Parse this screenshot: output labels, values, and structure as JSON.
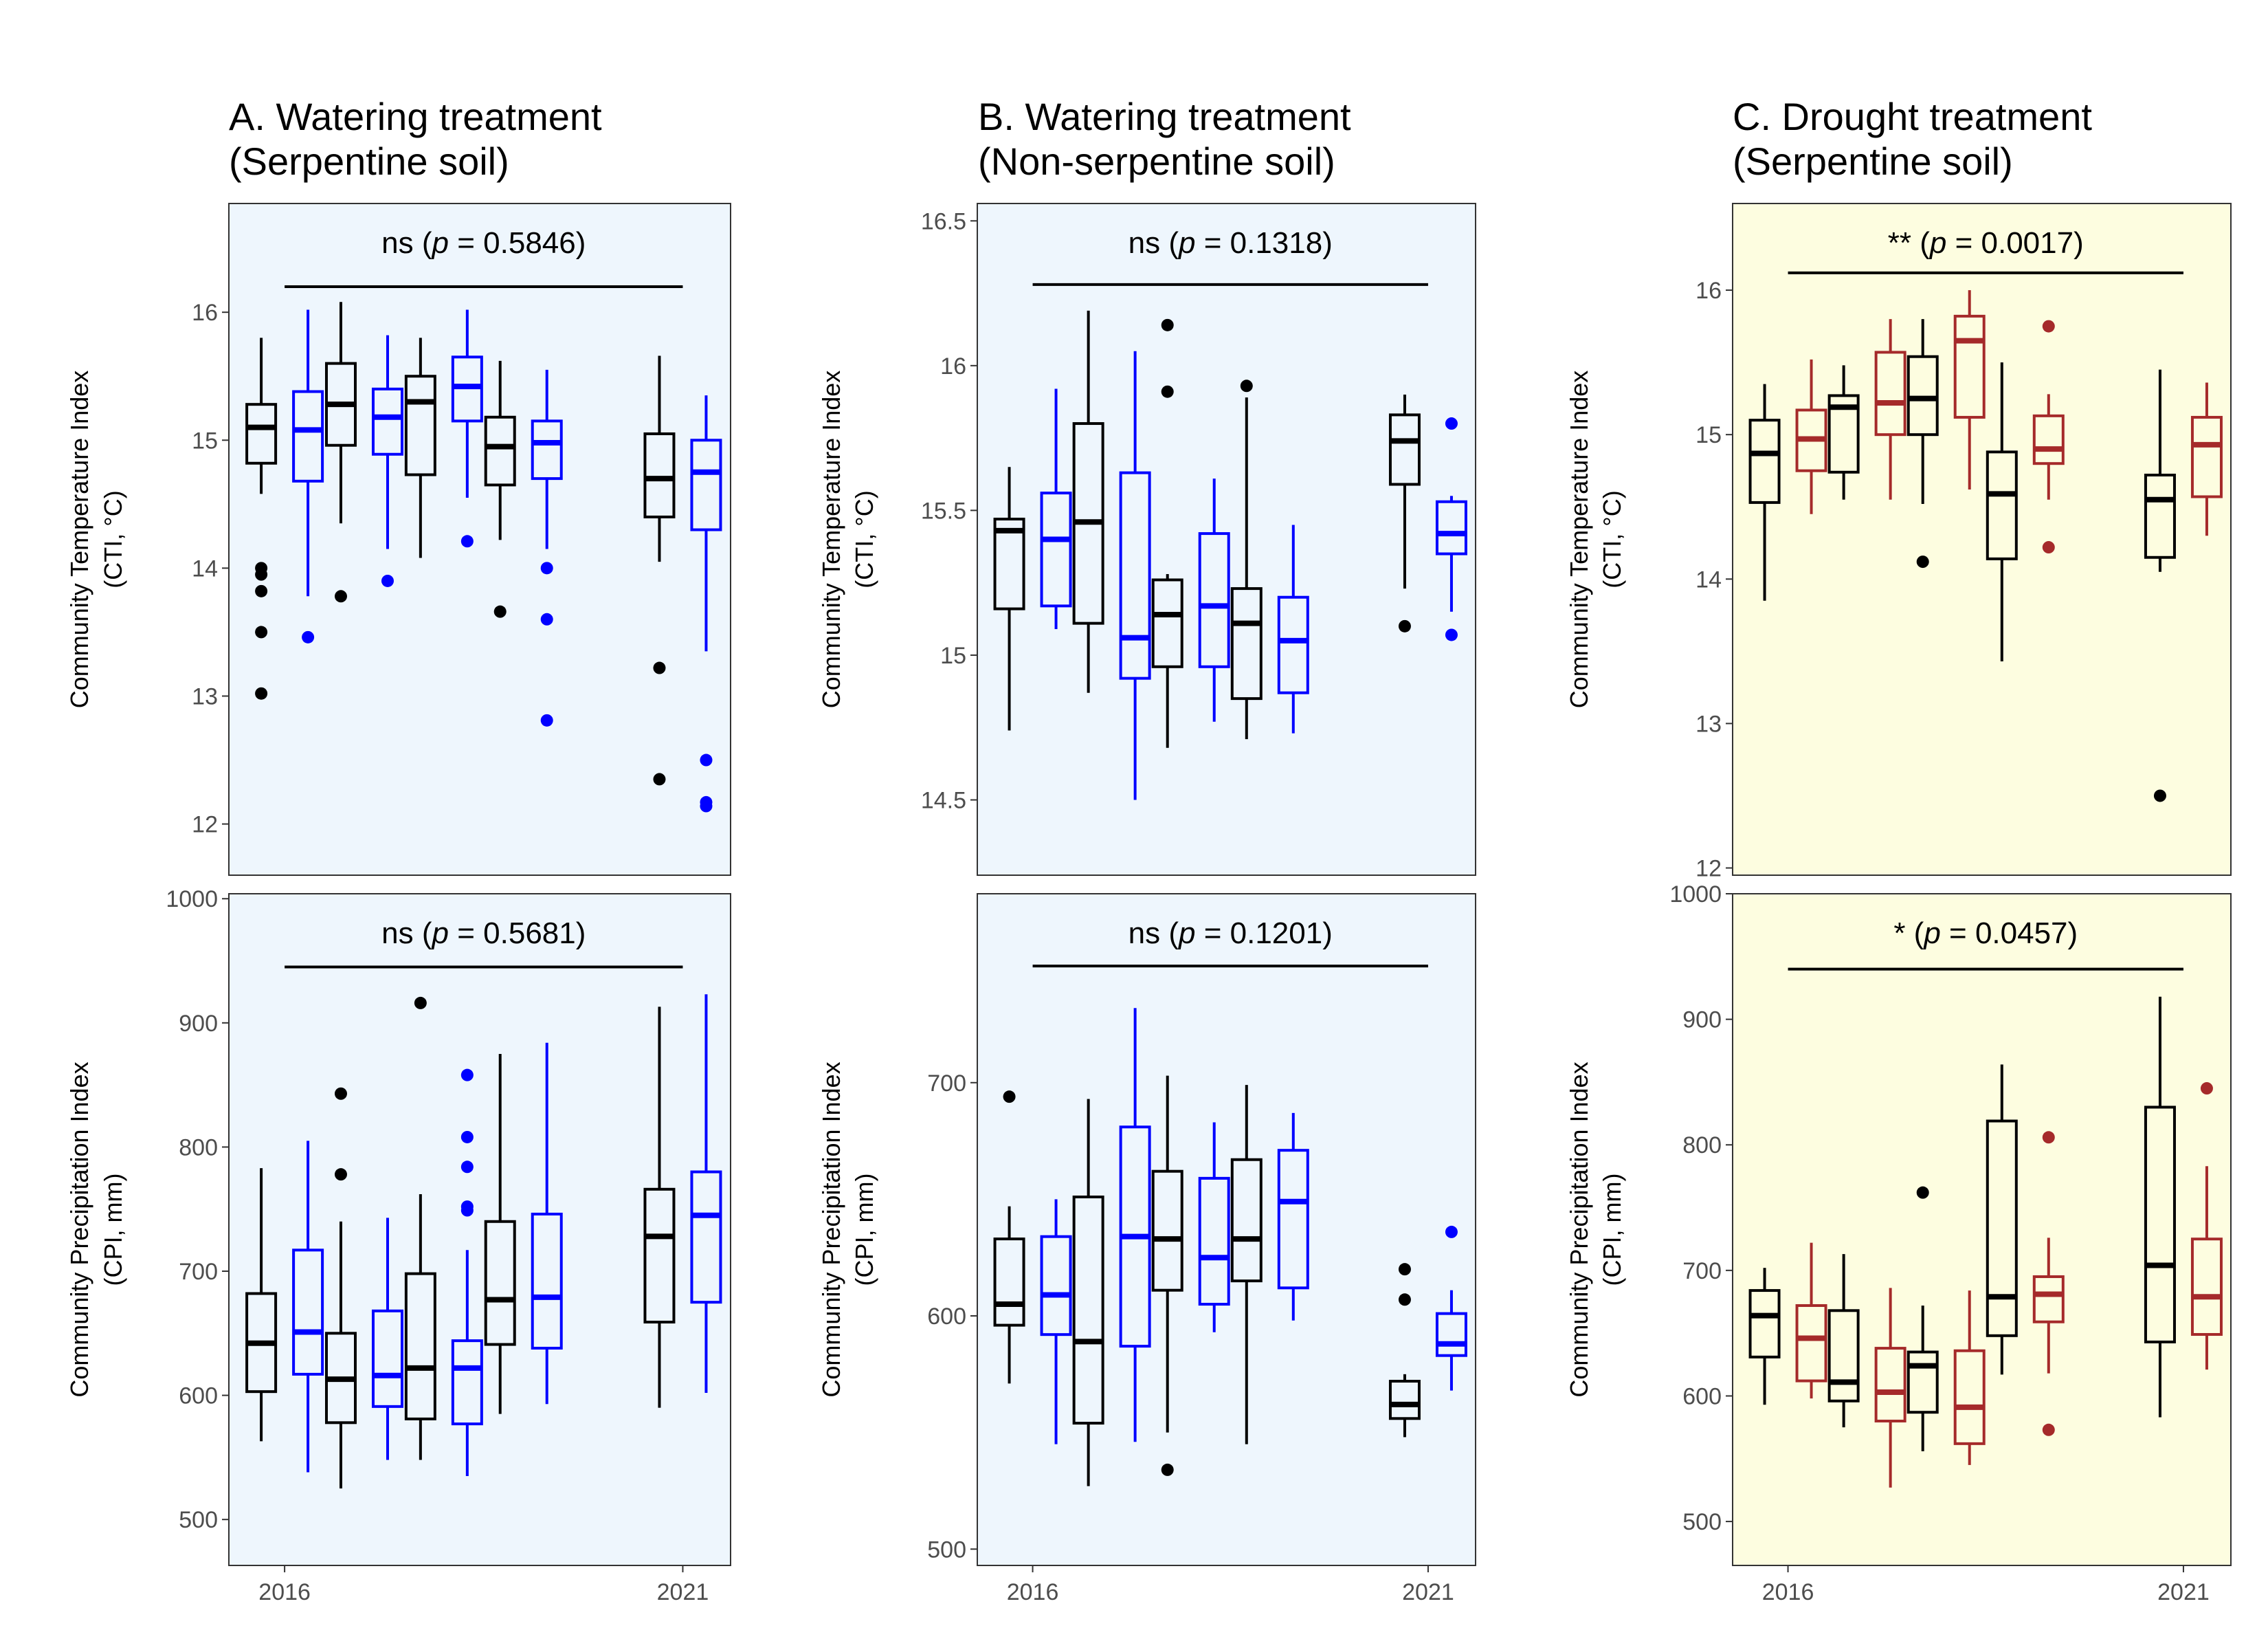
{
  "chart_data": [
    {
      "type": "box",
      "panel": "A",
      "title": "A. Watering treatment",
      "subtitle": "(Serpentine soil)",
      "ylabel": "Community Temperature Index",
      "ylabel2": "(CTI, °C)",
      "ylim": [
        11.6,
        16.85
      ],
      "yticks": [
        12,
        13,
        14,
        15,
        16
      ],
      "xticks": [
        "2016",
        "2021"
      ],
      "bg": "#eef6fd",
      "significance": {
        "stars": "ns",
        "p_label": "p = 0.5846",
        "x_from": 2016,
        "x_to": 2021,
        "y": 16.2
      },
      "series": [
        {
          "color": "#000000",
          "boxes": [
            {
              "x": 2016,
              "q1": 14.82,
              "median": 15.1,
              "q3": 15.28,
              "lo": 14.58,
              "hi": 15.8,
              "outliers": [
                14.0,
                13.95,
                13.82,
                13.5,
                13.02
              ]
            },
            {
              "x": 2017,
              "q1": 14.96,
              "median": 15.28,
              "q3": 15.6,
              "lo": 14.35,
              "hi": 16.08,
              "outliers": [
                13.78
              ]
            },
            {
              "x": 2018,
              "q1": 14.73,
              "median": 15.3,
              "q3": 15.5,
              "lo": 14.08,
              "hi": 15.8,
              "outliers": []
            },
            {
              "x": 2019,
              "q1": 14.65,
              "median": 14.95,
              "q3": 15.18,
              "lo": 14.22,
              "hi": 15.62,
              "outliers": [
                13.66
              ]
            },
            {
              "x": 2021,
              "q1": 14.4,
              "median": 14.7,
              "q3": 15.05,
              "lo": 14.05,
              "hi": 15.66,
              "outliers": [
                13.22,
                12.35
              ]
            }
          ]
        },
        {
          "color": "#0000ff",
          "boxes": [
            {
              "x": 2016,
              "q1": 14.68,
              "median": 15.08,
              "q3": 15.38,
              "lo": 13.78,
              "hi": 16.02,
              "outliers": [
                13.46
              ]
            },
            {
              "x": 2017,
              "q1": 14.89,
              "median": 15.18,
              "q3": 15.4,
              "lo": 14.15,
              "hi": 15.82,
              "outliers": [
                13.9
              ]
            },
            {
              "x": 2018,
              "q1": 15.15,
              "median": 15.42,
              "q3": 15.65,
              "lo": 14.55,
              "hi": 16.02,
              "outliers": [
                14.21
              ]
            },
            {
              "x": 2019,
              "q1": 14.7,
              "median": 14.98,
              "q3": 15.15,
              "lo": 14.15,
              "hi": 15.55,
              "outliers": [
                14.0,
                13.6,
                12.81
              ]
            },
            {
              "x": 2021,
              "q1": 14.3,
              "median": 14.75,
              "q3": 15.0,
              "lo": 13.35,
              "hi": 15.35,
              "outliers": [
                12.5,
                12.17,
                12.14
              ]
            }
          ]
        }
      ]
    },
    {
      "type": "box",
      "panel": "B",
      "title": "B. Watering treatment",
      "subtitle": "(Non-serpentine soil)",
      "ylabel": "Community Temperature Index",
      "ylabel2": "(CTI, °C)",
      "ylim": [
        14.24,
        16.56
      ],
      "yticks": [
        14.5,
        15.0,
        15.5,
        16.0,
        16.5
      ],
      "xticks": [
        "2016",
        "2021"
      ],
      "bg": "#eef6fd",
      "significance": {
        "stars": "ns",
        "p_label": "p = 0.1318",
        "x_from": 2016,
        "x_to": 2021,
        "y": 16.28
      },
      "series": [
        {
          "color": "#000000",
          "boxes": [
            {
              "x": 2016,
              "q1": 15.16,
              "median": 15.43,
              "q3": 15.47,
              "lo": 14.74,
              "hi": 15.65,
              "outliers": []
            },
            {
              "x": 2017,
              "q1": 15.11,
              "median": 15.46,
              "q3": 15.8,
              "lo": 14.87,
              "hi": 16.19,
              "outliers": []
            },
            {
              "x": 2018,
              "q1": 14.96,
              "median": 15.14,
              "q3": 15.26,
              "lo": 14.68,
              "hi": 15.28,
              "outliers": [
                16.14,
                15.91
              ]
            },
            {
              "x": 2019,
              "q1": 14.85,
              "median": 15.11,
              "q3": 15.23,
              "lo": 14.71,
              "hi": 15.89,
              "outliers": [
                15.93
              ]
            },
            {
              "x": 2021,
              "q1": 15.59,
              "median": 15.74,
              "q3": 15.83,
              "lo": 15.23,
              "hi": 15.9,
              "outliers": [
                15.1
              ]
            }
          ]
        },
        {
          "color": "#0000ff",
          "boxes": [
            {
              "x": 2016,
              "q1": 15.17,
              "median": 15.4,
              "q3": 15.56,
              "lo": 15.09,
              "hi": 15.92,
              "outliers": []
            },
            {
              "x": 2017,
              "q1": 14.92,
              "median": 15.06,
              "q3": 15.63,
              "lo": 14.5,
              "hi": 16.05,
              "outliers": []
            },
            {
              "x": 2018,
              "q1": 14.96,
              "median": 15.17,
              "q3": 15.42,
              "lo": 14.77,
              "hi": 15.61,
              "outliers": []
            },
            {
              "x": 2019,
              "q1": 14.87,
              "median": 15.05,
              "q3": 15.2,
              "lo": 14.73,
              "hi": 15.45,
              "outliers": []
            },
            {
              "x": 2021,
              "q1": 15.35,
              "median": 15.42,
              "q3": 15.53,
              "lo": 15.15,
              "hi": 15.55,
              "outliers": [
                15.8,
                15.07
              ]
            }
          ]
        }
      ]
    },
    {
      "type": "box",
      "panel": "C",
      "title": "C. Drought treatment",
      "subtitle": "(Serpentine soil)",
      "ylabel": "Community Temperature Index",
      "ylabel2": "(CTI, °C)",
      "ylim": [
        11.95,
        16.6
      ],
      "yticks": [
        12,
        13,
        14,
        15,
        16
      ],
      "xticks": [
        "2016",
        "2021"
      ],
      "bg": "#fdfde0",
      "significance": {
        "stars": "**",
        "p_label": "p = 0.0017",
        "x_from": 2016,
        "x_to": 2021,
        "y": 16.12
      },
      "series": [
        {
          "color": "#000000",
          "boxes": [
            {
              "x": 2016,
              "q1": 14.53,
              "median": 14.87,
              "q3": 15.1,
              "lo": 13.85,
              "hi": 15.35,
              "outliers": []
            },
            {
              "x": 2017,
              "q1": 14.74,
              "median": 15.19,
              "q3": 15.27,
              "lo": 14.55,
              "hi": 15.48,
              "outliers": []
            },
            {
              "x": 2018,
              "q1": 15.0,
              "median": 15.25,
              "q3": 15.54,
              "lo": 14.52,
              "hi": 15.8,
              "outliers": [
                14.12
              ]
            },
            {
              "x": 2019,
              "q1": 14.14,
              "median": 14.59,
              "q3": 14.88,
              "lo": 13.43,
              "hi": 15.5,
              "outliers": []
            },
            {
              "x": 2021,
              "q1": 14.15,
              "median": 14.55,
              "q3": 14.72,
              "lo": 14.05,
              "hi": 15.45,
              "outliers": [
                12.5
              ]
            }
          ]
        },
        {
          "color": "#a52a2a",
          "boxes": [
            {
              "x": 2016,
              "q1": 14.75,
              "median": 14.97,
              "q3": 15.17,
              "lo": 14.45,
              "hi": 15.52,
              "outliers": []
            },
            {
              "x": 2017,
              "q1": 15.0,
              "median": 15.22,
              "q3": 15.57,
              "lo": 14.55,
              "hi": 15.8,
              "outliers": []
            },
            {
              "x": 2018,
              "q1": 15.12,
              "median": 15.65,
              "q3": 15.82,
              "lo": 14.62,
              "hi": 16.0,
              "outliers": []
            },
            {
              "x": 2019,
              "q1": 14.8,
              "median": 14.9,
              "q3": 15.13,
              "lo": 14.55,
              "hi": 15.28,
              "outliers": [
                15.75,
                14.22
              ]
            },
            {
              "x": 2021,
              "q1": 14.57,
              "median": 14.93,
              "q3": 15.12,
              "lo": 14.3,
              "hi": 15.36,
              "outliers": []
            }
          ]
        }
      ]
    },
    {
      "type": "box",
      "panel": "A-bottom",
      "title": "",
      "subtitle": "",
      "ylabel": "Community Precipitation Index",
      "ylabel2": "(CPI, mm)",
      "ylim": [
        463,
        1004
      ],
      "yticks": [
        500,
        600,
        700,
        800,
        900,
        1000
      ],
      "xticks": [
        "2016",
        "2021"
      ],
      "bg": "#eef6fd",
      "significance": {
        "stars": "ns",
        "p_label": "p = 0.5681",
        "x_from": 2016,
        "x_to": 2021,
        "y": 945
      },
      "series": [
        {
          "color": "#000000",
          "boxes": [
            {
              "x": 2016,
              "q1": 603,
              "median": 642,
              "q3": 682,
              "lo": 563,
              "hi": 783,
              "outliers": []
            },
            {
              "x": 2017,
              "q1": 578,
              "median": 613,
              "q3": 650,
              "lo": 525,
              "hi": 740,
              "outliers": [
                843,
                778
              ]
            },
            {
              "x": 2018,
              "q1": 581,
              "median": 622,
              "q3": 698,
              "lo": 548,
              "hi": 762,
              "outliers": [
                916
              ]
            },
            {
              "x": 2019,
              "q1": 641,
              "median": 677,
              "q3": 740,
              "lo": 585,
              "hi": 875,
              "outliers": []
            },
            {
              "x": 2021,
              "q1": 659,
              "median": 728,
              "q3": 766,
              "lo": 590,
              "hi": 913,
              "outliers": []
            }
          ]
        },
        {
          "color": "#0000ff",
          "boxes": [
            {
              "x": 2016,
              "q1": 617,
              "median": 651,
              "q3": 717,
              "lo": 538,
              "hi": 805,
              "outliers": []
            },
            {
              "x": 2017,
              "q1": 591,
              "median": 616,
              "q3": 668,
              "lo": 548,
              "hi": 743,
              "outliers": []
            },
            {
              "x": 2018,
              "q1": 577,
              "median": 622,
              "q3": 644,
              "lo": 535,
              "hi": 717,
              "outliers": [
                858,
                808,
                784,
                752,
                749
              ]
            },
            {
              "x": 2019,
              "q1": 638,
              "median": 679,
              "q3": 746,
              "lo": 593,
              "hi": 884,
              "outliers": []
            },
            {
              "x": 2021,
              "q1": 675,
              "median": 745,
              "q3": 780,
              "lo": 602,
              "hi": 923,
              "outliers": []
            }
          ]
        }
      ]
    },
    {
      "type": "box",
      "panel": "B-bottom",
      "title": "",
      "subtitle": "",
      "ylabel": "Community Precipitation Index",
      "ylabel2": "(CPI, mm)",
      "ylim": [
        493,
        781
      ],
      "yticks": [
        500,
        600,
        700
      ],
      "xticks": [
        "2016",
        "2021"
      ],
      "bg": "#eef6fd",
      "significance": {
        "stars": "ns",
        "p_label": "p = 0.1201",
        "x_from": 2016,
        "x_to": 2021,
        "y": 750
      },
      "series": [
        {
          "color": "#000000",
          "boxes": [
            {
              "x": 2016,
              "q1": 596,
              "median": 605,
              "q3": 633,
              "lo": 571,
              "hi": 647,
              "outliers": [
                694
              ]
            },
            {
              "x": 2017,
              "q1": 554,
              "median": 589,
              "q3": 651,
              "lo": 527,
              "hi": 693,
              "outliers": []
            },
            {
              "x": 2018,
              "q1": 611,
              "median": 633,
              "q3": 662,
              "lo": 550,
              "hi": 703,
              "outliers": [
                534
              ]
            },
            {
              "x": 2019,
              "q1": 615,
              "median": 633,
              "q3": 667,
              "lo": 545,
              "hi": 699,
              "outliers": []
            },
            {
              "x": 2021,
              "q1": 556,
              "median": 562,
              "q3": 572,
              "lo": 548,
              "hi": 575,
              "outliers": [
                620,
                607
              ]
            }
          ]
        },
        {
          "color": "#0000ff",
          "boxes": [
            {
              "x": 2016,
              "q1": 592,
              "median": 609,
              "q3": 634,
              "lo": 545,
              "hi": 650,
              "outliers": []
            },
            {
              "x": 2017,
              "q1": 587,
              "median": 634,
              "q3": 681,
              "lo": 546,
              "hi": 732,
              "outliers": []
            },
            {
              "x": 2018,
              "q1": 605,
              "median": 625,
              "q3": 659,
              "lo": 593,
              "hi": 683,
              "outliers": []
            },
            {
              "x": 2019,
              "q1": 612,
              "median": 649,
              "q3": 671,
              "lo": 598,
              "hi": 687,
              "outliers": []
            },
            {
              "x": 2021,
              "q1": 583,
              "median": 588,
              "q3": 601,
              "lo": 568,
              "hi": 611,
              "outliers": [
                636
              ]
            }
          ]
        }
      ]
    },
    {
      "type": "box",
      "panel": "C-bottom",
      "title": "",
      "subtitle": "",
      "ylabel": "Community Precipitation Index",
      "ylabel2": "(CPI, mm)",
      "ylim": [
        465,
        1000
      ],
      "yticks": [
        500,
        600,
        700,
        800,
        900,
        1000
      ],
      "xticks": [
        "2016",
        "2021"
      ],
      "bg": "#fdfde0",
      "significance": {
        "stars": "*",
        "p_label": "p = 0.0457",
        "x_from": 2016,
        "x_to": 2021,
        "y": 940
      },
      "series": [
        {
          "color": "#000000",
          "boxes": [
            {
              "x": 2016,
              "q1": 631,
              "median": 664,
              "q3": 684,
              "lo": 593,
              "hi": 702,
              "outliers": []
            },
            {
              "x": 2017,
              "q1": 596,
              "median": 611,
              "q3": 668,
              "lo": 575,
              "hi": 713,
              "outliers": []
            },
            {
              "x": 2018,
              "q1": 587,
              "median": 624,
              "q3": 635,
              "lo": 556,
              "hi": 672,
              "outliers": [
                762
              ]
            },
            {
              "x": 2019,
              "q1": 648,
              "median": 679,
              "q3": 819,
              "lo": 617,
              "hi": 864,
              "outliers": []
            },
            {
              "x": 2021,
              "q1": 643,
              "median": 704,
              "q3": 830,
              "lo": 583,
              "hi": 918,
              "outliers": []
            }
          ]
        },
        {
          "color": "#a52a2a",
          "boxes": [
            {
              "x": 2016,
              "q1": 612,
              "median": 646,
              "q3": 672,
              "lo": 598,
              "hi": 722,
              "outliers": []
            },
            {
              "x": 2017,
              "q1": 580,
              "median": 603,
              "q3": 638,
              "lo": 527,
              "hi": 686,
              "outliers": []
            },
            {
              "x": 2018,
              "q1": 562,
              "median": 591,
              "q3": 636,
              "lo": 545,
              "hi": 684,
              "outliers": []
            },
            {
              "x": 2019,
              "q1": 659,
              "median": 681,
              "q3": 695,
              "lo": 618,
              "hi": 726,
              "outliers": [
                806,
                573
              ]
            },
            {
              "x": 2021,
              "q1": 649,
              "median": 679,
              "q3": 725,
              "lo": 621,
              "hi": 783,
              "outliers": [
                845
              ]
            }
          ]
        }
      ]
    }
  ]
}
